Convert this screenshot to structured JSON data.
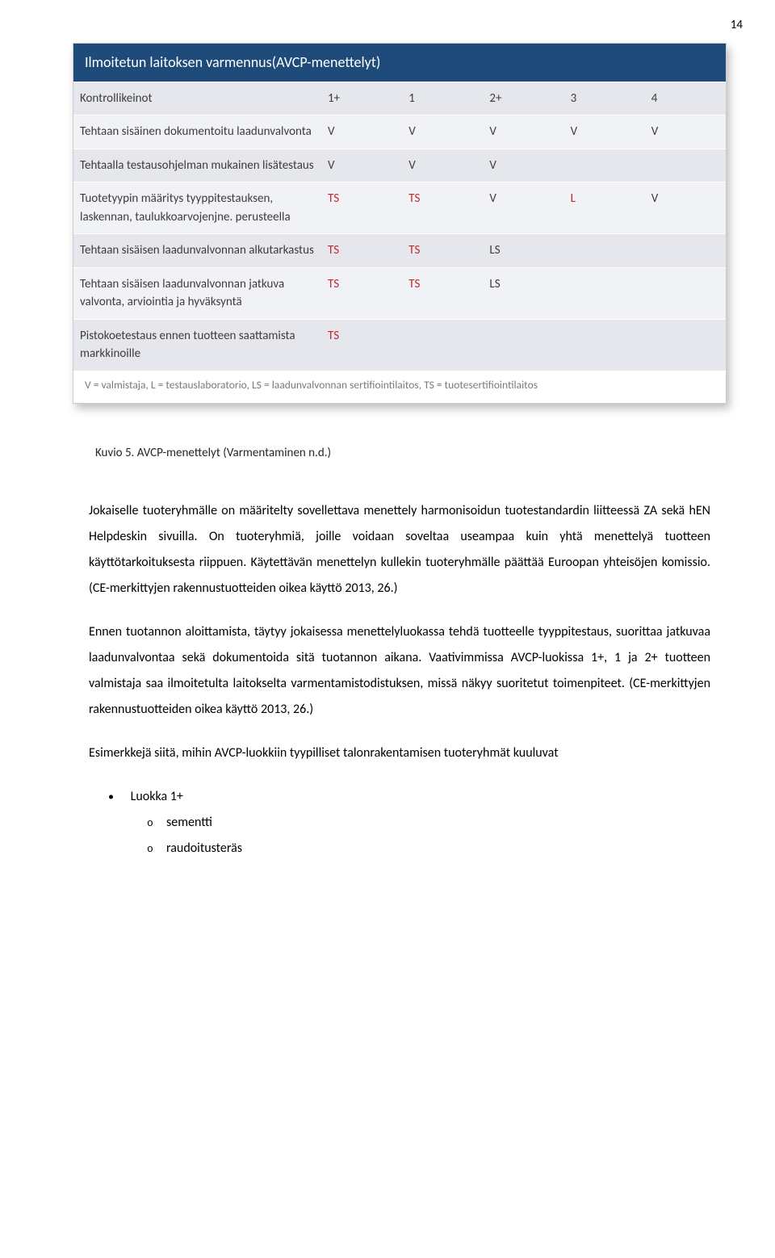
{
  "page_number": "14",
  "colors": {
    "header_bg": "#1e4b7a",
    "header_text": "#ffffff",
    "row_alt": "#e5e7ec",
    "row_plain": "#f1f2f5",
    "cell_text": "#3d3d3d",
    "red_text": "#c1272d",
    "legend_text": "#7a7a7a",
    "shadow": "rgba(0,0,0,0.25)"
  },
  "table": {
    "title": "Ilmoitetun laitoksen varmennus(AVCP-menettelyt)",
    "header_row": {
      "label": "Kontrollikeinot",
      "cols": [
        "1+",
        "1",
        "2+",
        "3",
        "4"
      ]
    },
    "rows": [
      {
        "label": "Tehtaan sisäinen dokumentoitu laadunvalvonta",
        "cells": [
          "V",
          "V",
          "V",
          "V",
          "V"
        ],
        "red": [
          false,
          false,
          false,
          false,
          false
        ]
      },
      {
        "label": "Tehtaalla testausohjelman mukainen lisätestaus",
        "cells": [
          "V",
          "V",
          "V",
          "",
          ""
        ],
        "red": [
          false,
          false,
          false,
          false,
          false
        ]
      },
      {
        "label": "Tuotetyypin määritys tyyppitestauksen, laskennan, taulukkoarvojenjne. perusteella",
        "cells": [
          "TS",
          "TS",
          "V",
          "L",
          "V"
        ],
        "red": [
          true,
          true,
          false,
          true,
          false
        ]
      },
      {
        "label": "Tehtaan sisäisen laadunvalvonnan alkutarkastus",
        "cells": [
          "TS",
          "TS",
          "LS",
          "",
          ""
        ],
        "red": [
          true,
          true,
          false,
          false,
          false
        ]
      },
      {
        "label": "Tehtaan sisäisen laadunvalvonnan jatkuva valvonta, arviointia ja hyväksyntä",
        "cells": [
          "TS",
          "TS",
          "LS",
          "",
          ""
        ],
        "red": [
          true,
          true,
          false,
          false,
          false
        ]
      },
      {
        "label": "Pistokoetestaus ennen tuotteen saattamista markkinoille",
        "cells": [
          "TS",
          "",
          "",
          "",
          ""
        ],
        "red": [
          true,
          false,
          false,
          false,
          false
        ]
      }
    ],
    "legend": "V = valmistaja, L = testauslaboratorio, LS = laadunvalvonnan sertifiointilaitos, TS = tuotesertifiointilaitos"
  },
  "caption": "Kuvio 5. AVCP-menettelyt (Varmentaminen n.d.)",
  "paragraphs": [
    "Jokaiselle tuoteryhmälle on määritelty sovellettava menettely harmonisoidun tuotestandardin liitteessä ZA sekä hEN Helpdeskin sivuilla. On tuoteryhmiä, joille voidaan soveltaa useampaa kuin yhtä menettelyä tuotteen käyttötarkoituksesta riippuen. Käytettävän menettelyn kullekin tuoteryhmälle päättää Euroopan yhteisöjen komissio. (CE-merkittyjen rakennustuotteiden oikea käyttö 2013, 26.)",
    "Ennen tuotannon aloittamista, täytyy jokaisessa menettelyluokassa tehdä tuotteelle tyyppitestaus, suorittaa jatkuvaa laadunvalvontaa sekä dokumentoida sitä tuotannon aikana. Vaativimmissa AVCP-luokissa 1+, 1 ja 2+ tuotteen valmistaja saa ilmoitetulta laitokselta varmentamistodistuksen, missä näkyy suoritetut toimenpiteet. (CE-merkittyjen rakennustuotteiden oikea käyttö 2013, 26.)",
    "Esimerkkejä siitä, mihin AVCP-luokkiin tyypilliset talonrakentamisen tuoteryhmät kuuluvat"
  ],
  "list": {
    "top": "Luokka 1+",
    "subs": [
      "sementti",
      "raudoitusteräs"
    ]
  }
}
